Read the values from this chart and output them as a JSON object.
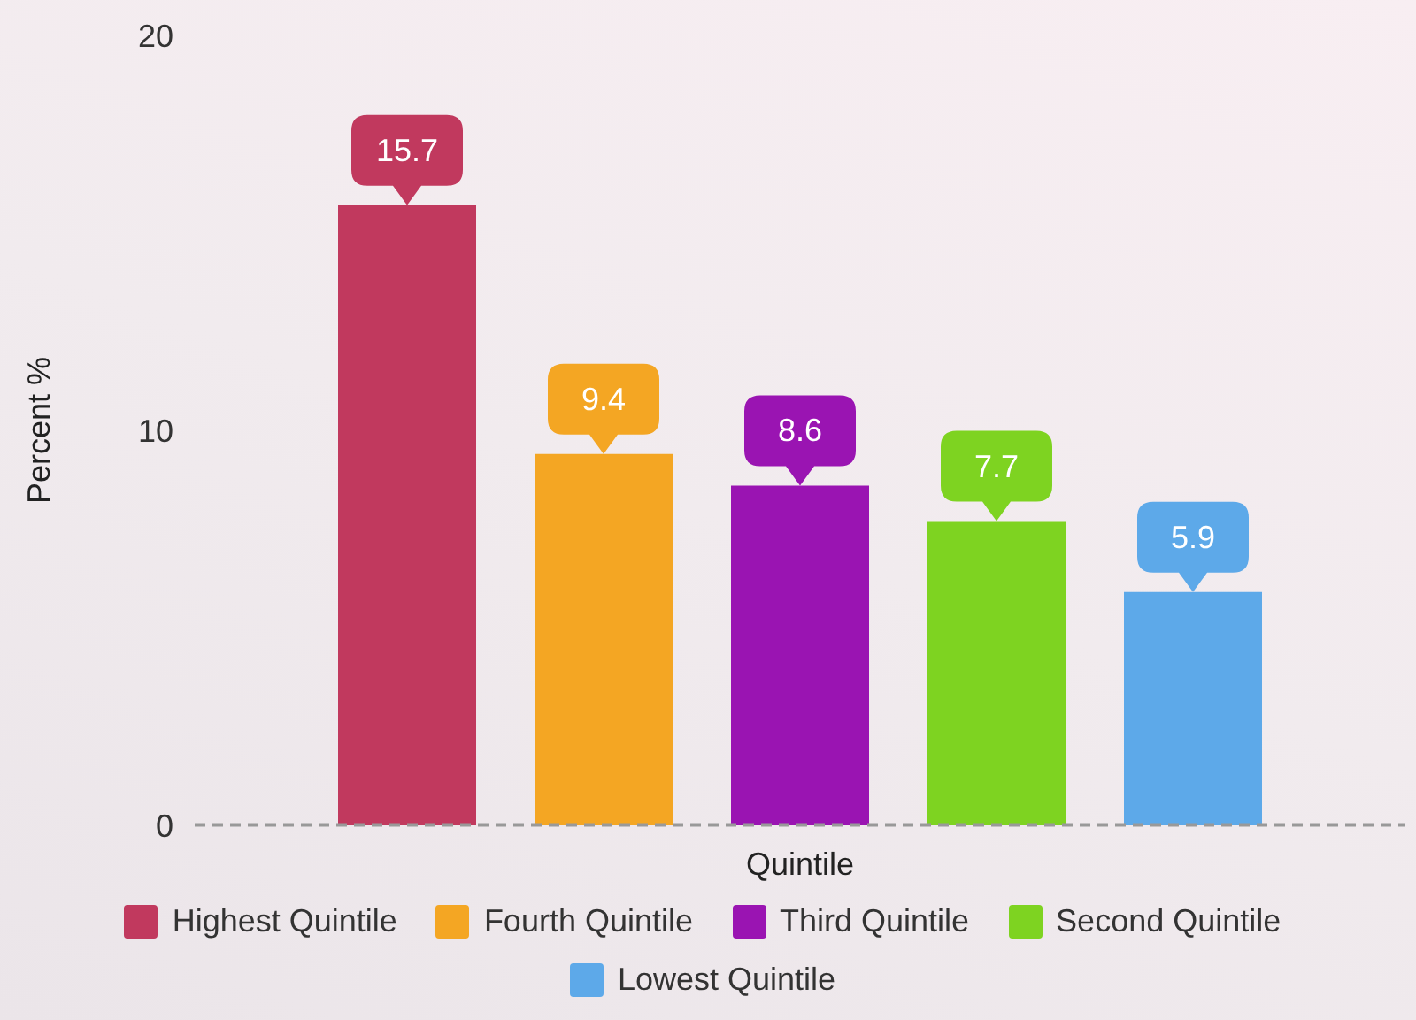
{
  "chart_data": {
    "type": "bar",
    "xlabel": "Quintile",
    "ylabel": "Percent %",
    "categories": [
      null
    ],
    "series": [
      {
        "name": "Highest Quintile",
        "color": "#c1395e",
        "values": [
          15.7
        ]
      },
      {
        "name": "Fourth Quintile",
        "color": "#f4a623",
        "values": [
          9.4
        ]
      },
      {
        "name": "Third Quintile",
        "color": "#9a14b2",
        "values": [
          8.6
        ]
      },
      {
        "name": "Second Quintile",
        "color": "#7ed321",
        "values": [
          7.7
        ]
      },
      {
        "name": "Lowest Quintile",
        "color": "#5da9e9",
        "values": [
          5.9
        ]
      }
    ],
    "ylim": [
      0,
      20
    ],
    "yticks": [
      0,
      10,
      20
    ],
    "tick_labels": "y",
    "legend": "bottom",
    "data_labels": true
  }
}
